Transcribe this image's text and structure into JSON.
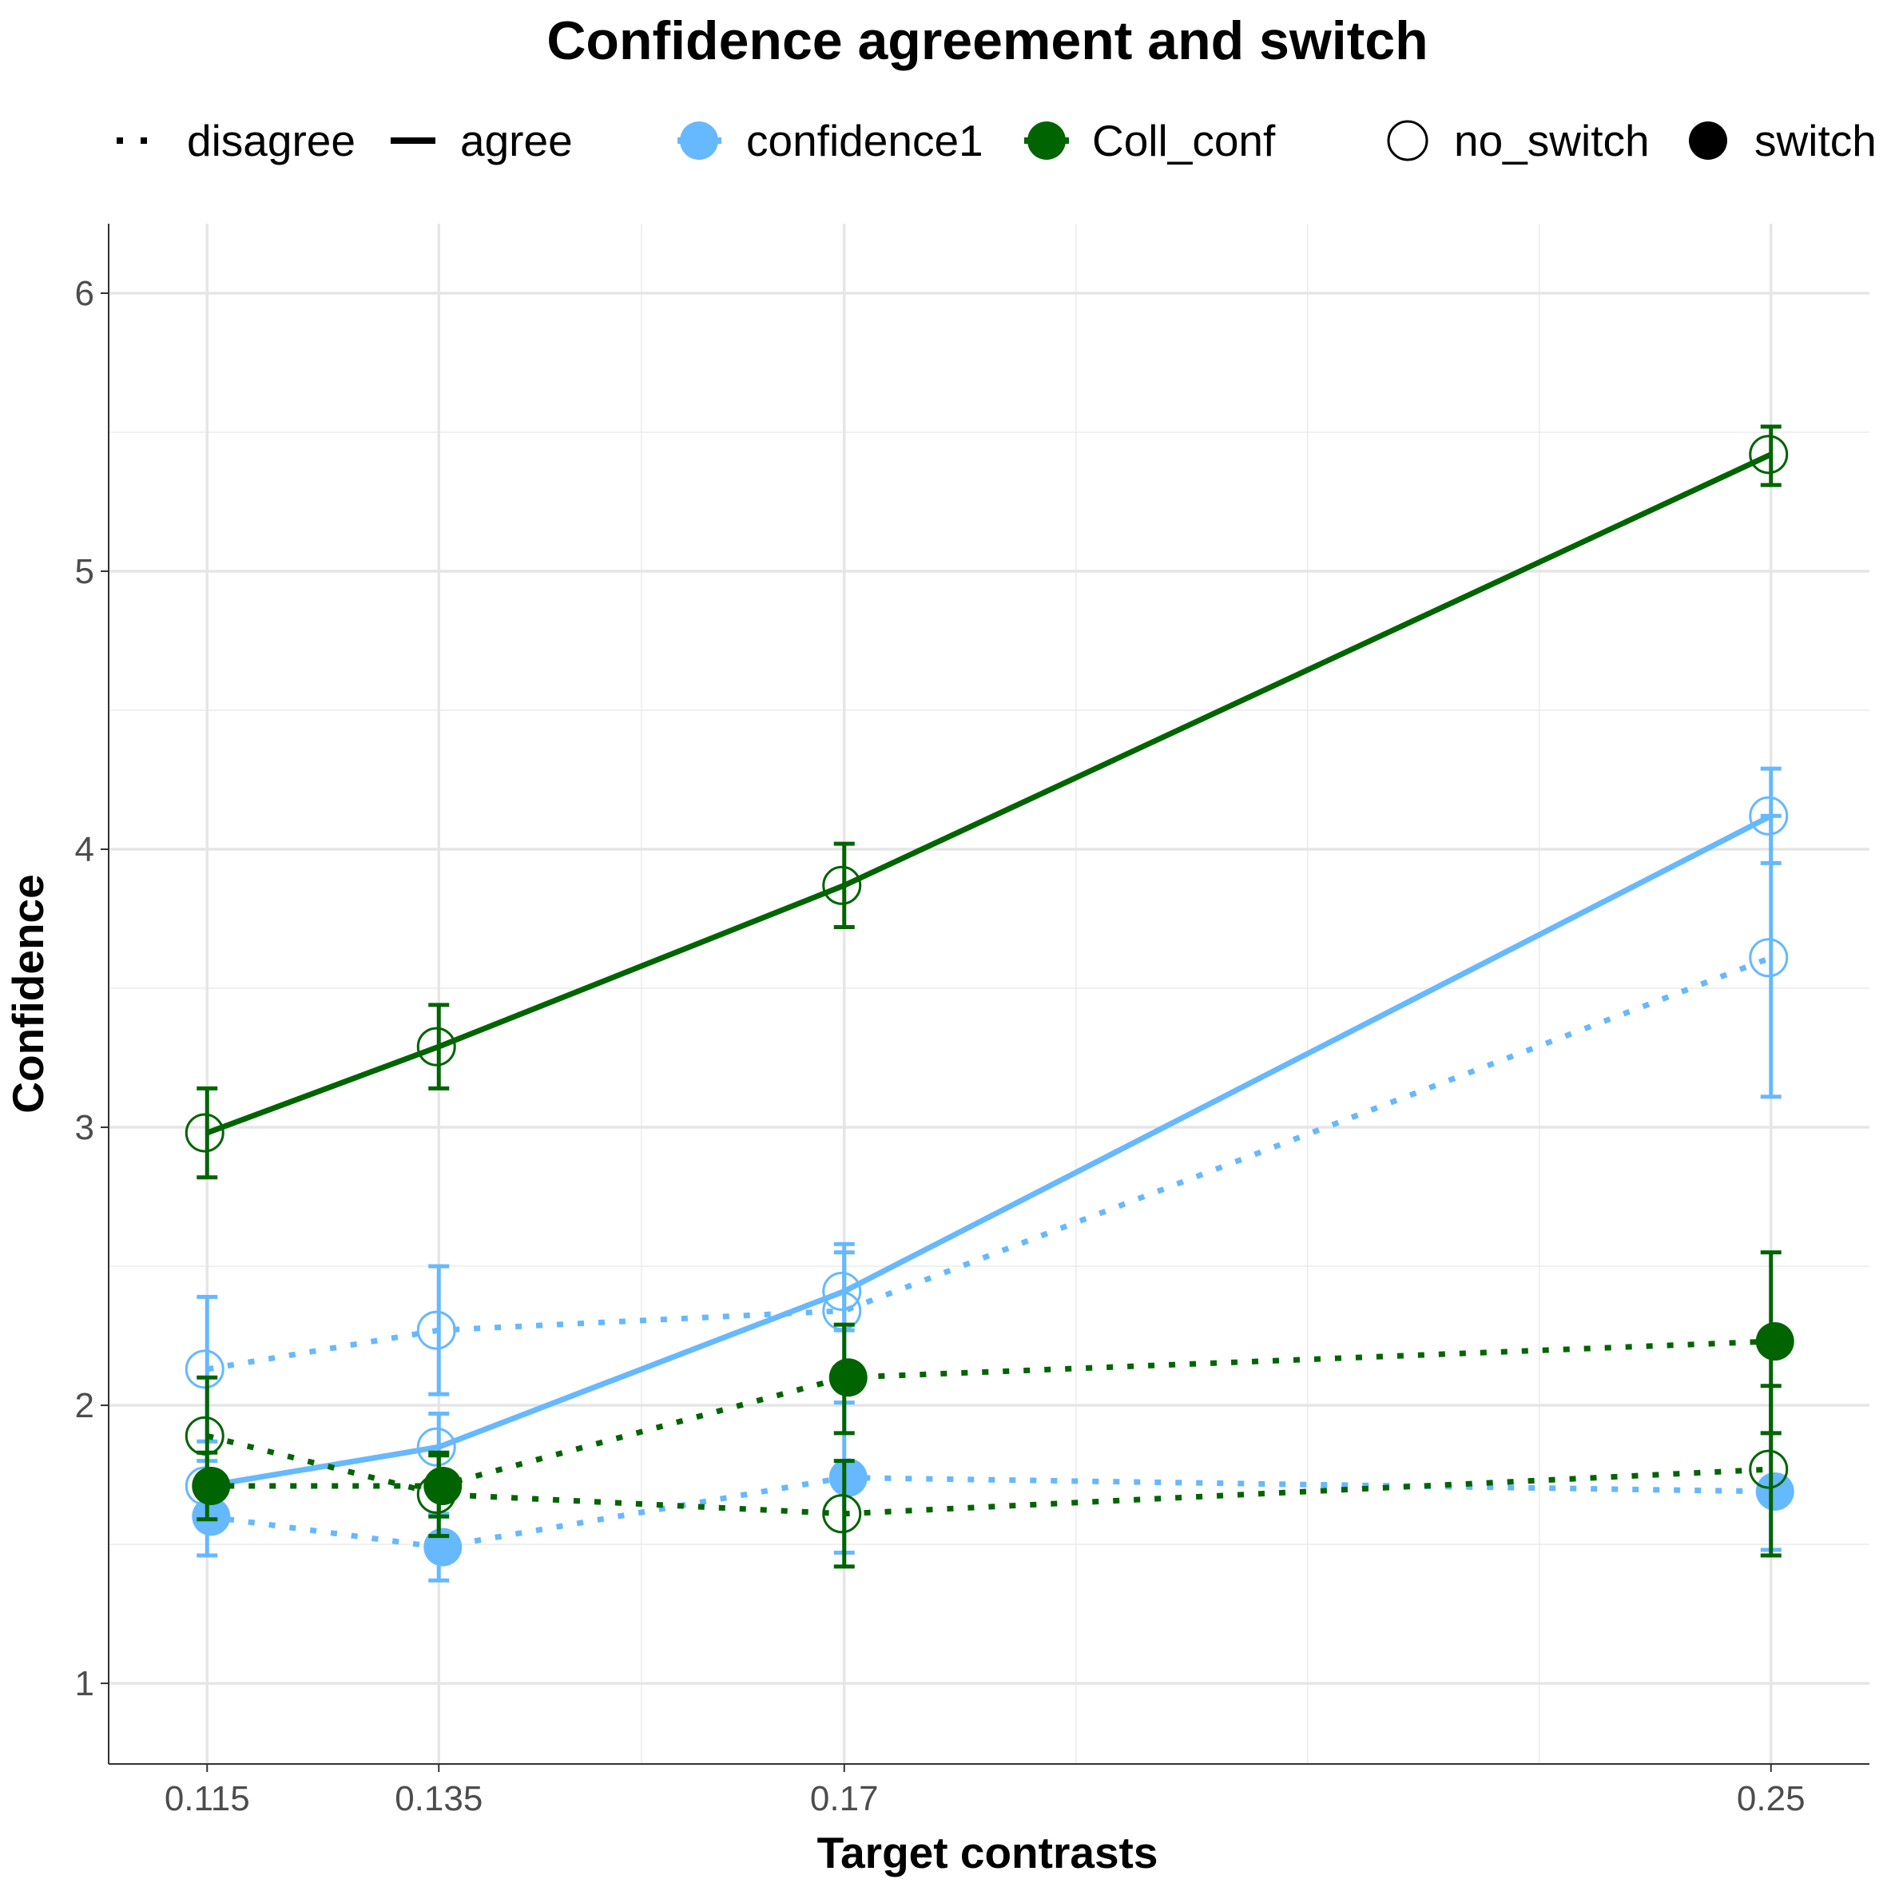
{
  "chart_data": {
    "type": "line",
    "title": "Confidence agreement and switch",
    "xlabel": "Target contrasts",
    "ylabel": "Confidence",
    "x": [
      0.115,
      0.135,
      0.17,
      0.25
    ],
    "x_tick_labels": [
      "0.115",
      "0.135",
      "0.17",
      "0.25"
    ],
    "xlim": [
      0.1065,
      0.2585
    ],
    "ylim": [
      0.71,
      6.25
    ],
    "y_ticks": [
      1,
      2,
      3,
      4,
      5,
      6
    ],
    "y_tick_labels": [
      "1",
      "2",
      "3",
      "4",
      "5",
      "6"
    ],
    "grid": true,
    "legend_position": "top",
    "legend": {
      "linetype": [
        {
          "label": "disagree",
          "style": "dotted"
        },
        {
          "label": "agree",
          "style": "solid"
        }
      ],
      "color": [
        {
          "label": "confidence1",
          "color": "#66B8FF"
        },
        {
          "label": "Coll_conf",
          "color": "#006400"
        }
      ],
      "shape": [
        {
          "label": "no_switch",
          "fill": "open"
        },
        {
          "label": "switch",
          "fill": "filled"
        }
      ]
    },
    "series": [
      {
        "measure": "Coll_conf",
        "agreement": "agree",
        "switch": "no_switch",
        "color": "#006400",
        "values": [
          2.98,
          3.29,
          3.87,
          5.42
        ],
        "err_low": [
          2.82,
          3.14,
          3.72,
          5.31
        ],
        "err_high": [
          3.14,
          3.44,
          4.02,
          5.52
        ]
      },
      {
        "measure": "confidence1",
        "agreement": "agree",
        "switch": "no_switch",
        "color": "#66B8FF",
        "values": [
          1.71,
          1.85,
          2.41,
          4.12
        ],
        "err_low": [
          1.62,
          1.73,
          2.27,
          3.95
        ],
        "err_high": [
          1.8,
          1.97,
          2.55,
          4.29
        ]
      },
      {
        "measure": "confidence1",
        "agreement": "disagree",
        "switch": "no_switch",
        "color": "#66B8FF",
        "values": [
          2.13,
          2.27,
          2.34,
          3.61
        ],
        "err_low": [
          1.87,
          2.04,
          2.1,
          3.11
        ],
        "err_high": [
          2.39,
          2.5,
          2.58,
          4.12
        ]
      },
      {
        "measure": "confidence1",
        "agreement": "disagree",
        "switch": "switch",
        "color": "#66B8FF",
        "values": [
          1.6,
          1.49,
          1.74,
          1.69
        ],
        "err_low": [
          1.46,
          1.37,
          1.47,
          1.48
        ],
        "err_high": [
          1.74,
          1.61,
          2.01,
          1.9
        ]
      },
      {
        "measure": "Coll_conf",
        "agreement": "disagree",
        "switch": "no_switch",
        "color": "#006400",
        "values": [
          1.89,
          1.68,
          1.61,
          1.77
        ],
        "err_low": [
          1.68,
          1.53,
          1.42,
          1.46
        ],
        "err_high": [
          2.1,
          1.83,
          1.8,
          2.07
        ]
      },
      {
        "measure": "Coll_conf",
        "agreement": "disagree",
        "switch": "switch",
        "color": "#006400",
        "values": [
          1.71,
          1.71,
          2.1,
          2.23
        ],
        "err_low": [
          1.59,
          1.6,
          1.9,
          1.9
        ],
        "err_high": [
          1.83,
          1.82,
          2.29,
          2.55
        ]
      }
    ]
  }
}
